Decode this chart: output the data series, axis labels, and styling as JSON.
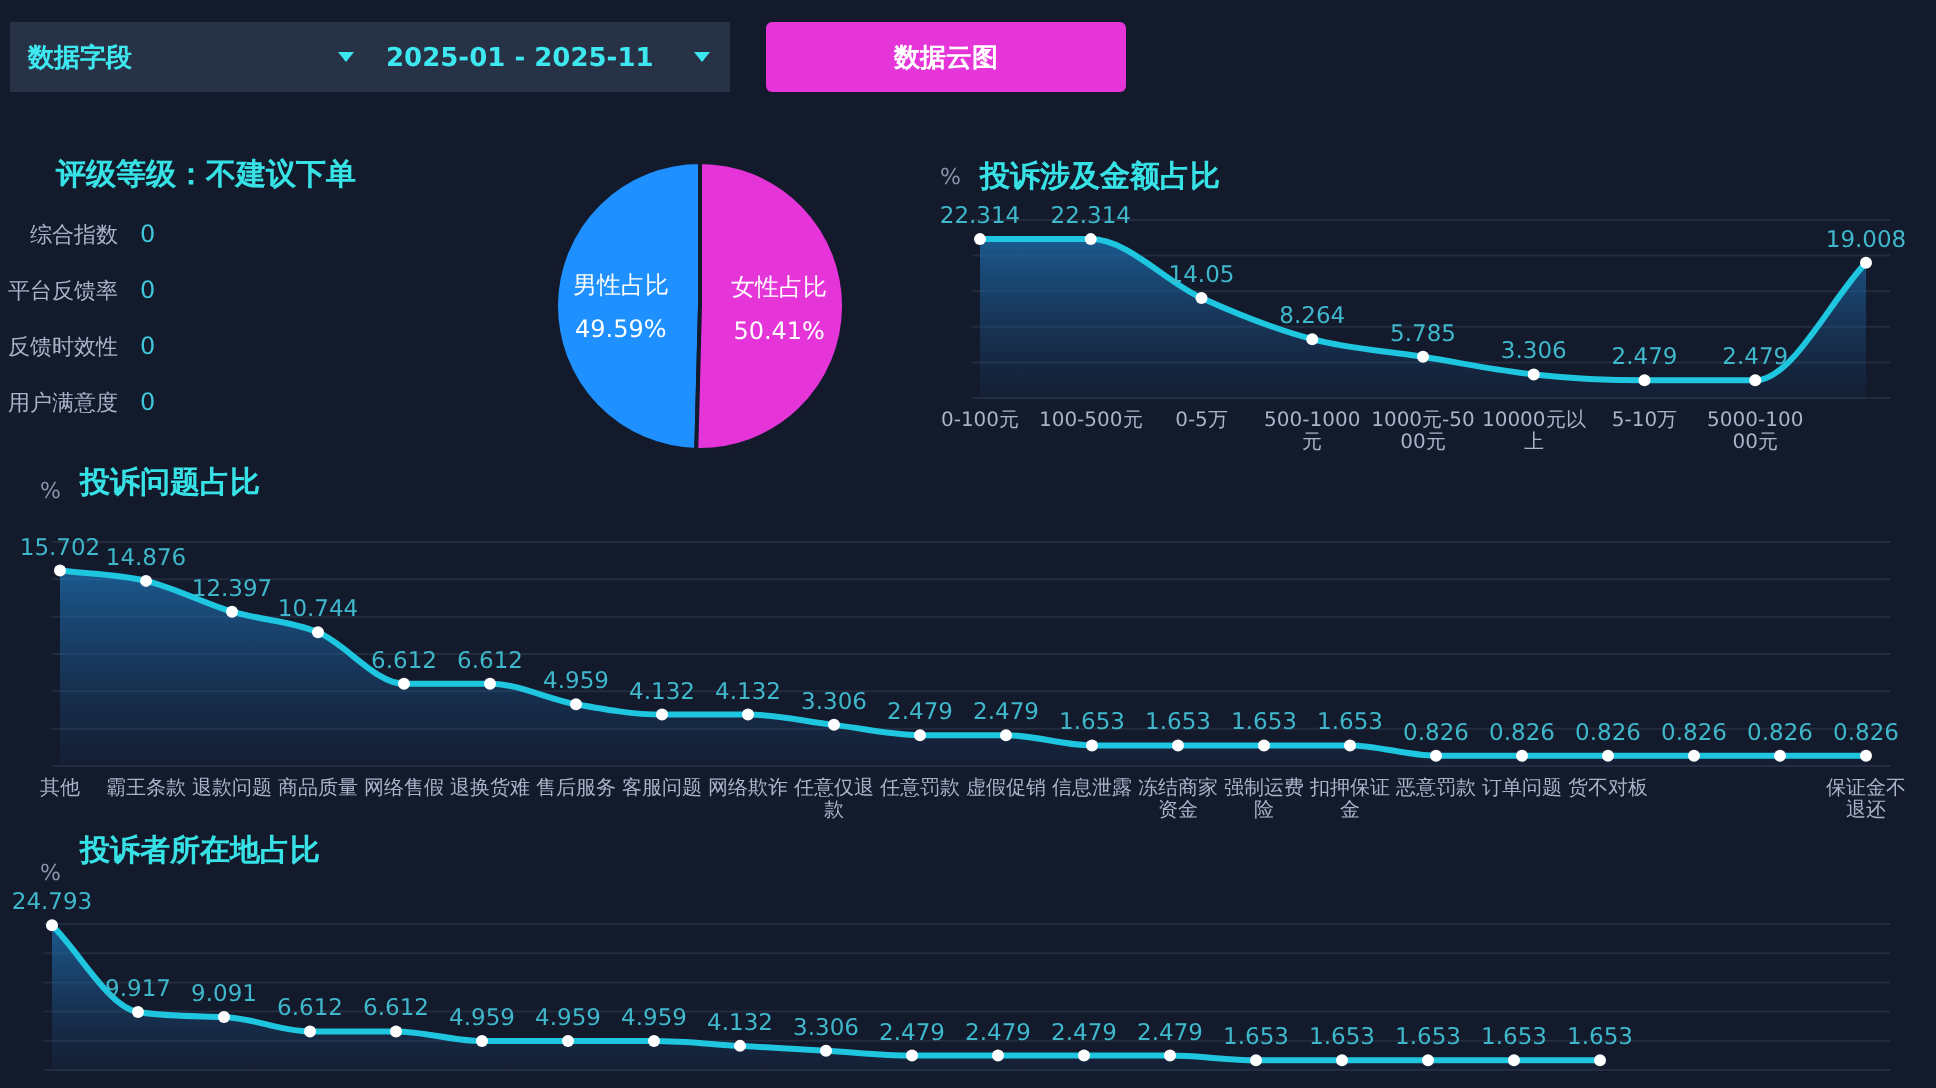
{
  "chart_data": [
    {
      "type": "other",
      "annotations": [
        "数据字段",
        "2025-01 - 2025-11",
        "数据云图"
      ]
    },
    {
      "type": "other",
      "title": "评级等级：不建议下单",
      "categories": [
        "综合指数",
        "平台反馈率",
        "反馈时效性",
        "用户满意度"
      ],
      "values": [
        0,
        0,
        0,
        0
      ],
      "data_labels": true
    },
    {
      "type": "pie",
      "categories": [
        "男性占比",
        "女性占比"
      ],
      "values": [
        49.59,
        50.41
      ],
      "colors": [
        "#1e90ff",
        "#e535d9"
      ],
      "value_labels": [
        "49.59%",
        "50.41%"
      ]
    },
    {
      "type": "area",
      "title": "投诉涉及金额占比",
      "ylabel": "%",
      "categories": [
        "0-100元",
        "100-500元",
        "0-5万",
        "500-1000元",
        "1000元-5000元",
        "10000元以上",
        "5-10万",
        "5000-10000元",
        null
      ],
      "values": [
        22.314,
        22.314,
        14.05,
        8.264,
        5.785,
        3.306,
        2.479,
        2.479,
        19.008
      ],
      "color": "#1fc6e0",
      "ylim": [
        0,
        25
      ],
      "yticks": [
        {
          "value": 0,
          "label": null
        },
        {
          "value": 5,
          "label": null
        },
        {
          "value": 10,
          "label": null
        },
        {
          "value": 15,
          "label": null
        },
        {
          "value": 20,
          "label": null
        },
        {
          "value": 25,
          "label": null
        }
      ],
      "grid": "y",
      "marker": "circle",
      "data_labels": true,
      "tick_labels": "x"
    },
    {
      "type": "area",
      "title": "投诉问题占比",
      "ylabel": "%",
      "categories": [
        "其他",
        "霸王条款",
        "退款问题",
        "商品质量",
        "网络售假",
        "退换货难",
        "售后服务",
        "客服问题",
        "网络欺诈",
        "任意仅退款",
        "任意罚款",
        "虚假促销",
        "信息泄露",
        "冻结商家资金",
        "强制运费险",
        "扣押保证金",
        "恶意罚款",
        "订单问题",
        "货不对板",
        null,
        null,
        "保证金不退还"
      ],
      "values": [
        15.702,
        14.876,
        12.397,
        10.744,
        6.612,
        6.612,
        4.959,
        4.132,
        4.132,
        3.306,
        2.479,
        2.479,
        1.653,
        1.653,
        1.653,
        1.653,
        0.826,
        0.826,
        0.826,
        0.826,
        0.826,
        0.826
      ],
      "color": "#1fc6e0",
      "ylim": [
        0,
        18
      ],
      "yticks": [
        {
          "value": 0,
          "label": null
        },
        {
          "value": 3,
          "label": null
        },
        {
          "value": 6,
          "label": null
        },
        {
          "value": 9,
          "label": null
        },
        {
          "value": 12,
          "label": null
        },
        {
          "value": 15,
          "label": null
        },
        {
          "value": 18,
          "label": null
        }
      ],
      "grid": "y",
      "marker": "circle",
      "data_labels": true,
      "tick_labels": "x"
    },
    {
      "type": "area",
      "title": "投诉者所在地占比",
      "ylabel": "%",
      "categories": [
        null,
        null,
        null,
        null,
        null,
        null,
        null,
        null,
        null,
        null,
        null,
        null,
        null,
        null,
        null,
        null,
        null,
        null,
        null
      ],
      "values": [
        24.793,
        9.917,
        9.091,
        6.612,
        6.612,
        4.959,
        4.959,
        4.959,
        4.132,
        3.306,
        2.479,
        2.479,
        2.479,
        2.479,
        1.653,
        1.653,
        1.653,
        1.653,
        1.653
      ],
      "color": "#1fc6e0",
      "ylim": [
        0,
        25
      ],
      "yticks": [
        {
          "value": 0,
          "label": null
        },
        {
          "value": 5,
          "label": null
        },
        {
          "value": 10,
          "label": null
        },
        {
          "value": 15,
          "label": null
        },
        {
          "value": 20,
          "label": null
        },
        {
          "value": 25,
          "label": null
        }
      ],
      "grid": "y",
      "marker": "circle",
      "data_labels": true,
      "tick_labels": false
    }
  ]
}
